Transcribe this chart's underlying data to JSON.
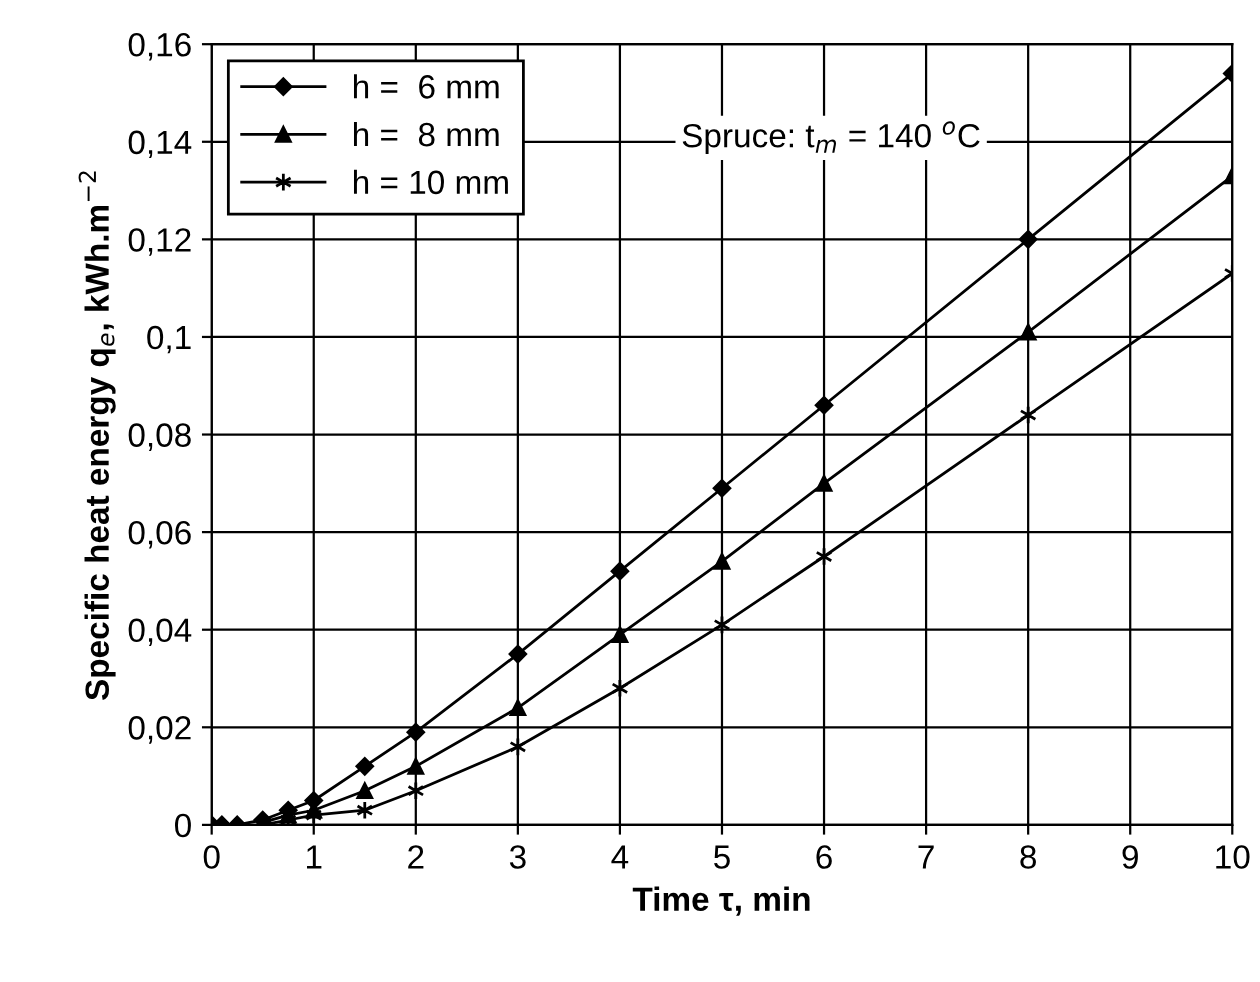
{
  "chart_data": {
    "type": "line",
    "xlabel": "Time τ, min",
    "ylabel": "Specific heat energy q$_{e}$, kWh.m$^{−2}$",
    "annotations": [
      "Spruce: t$_{m}$ = 140 $^{o}$C"
    ],
    "x": [
      0,
      0.1,
      0.25,
      0.5,
      0.75,
      1,
      1.5,
      2,
      3,
      4,
      5,
      6,
      8,
      10
    ],
    "series": [
      {
        "name": "h =  6 mm",
        "color": "#000000",
        "marker": "diamond",
        "values": [
          0,
          0,
          0,
          0.001,
          0.003,
          0.005,
          0.012,
          0.019,
          0.035,
          0.052,
          0.069,
          0.086,
          0.12,
          0.154
        ]
      },
      {
        "name": "h =  8 mm",
        "color": "#000000",
        "marker": "triangle",
        "values": [
          null,
          null,
          null,
          0.0005,
          0.002,
          0.003,
          0.007,
          0.012,
          0.024,
          0.039,
          0.054,
          0.07,
          0.101,
          0.133
        ]
      },
      {
        "name": "h = 10 mm",
        "color": "#000000",
        "marker": "cross",
        "values": [
          null,
          null,
          null,
          0,
          0.001,
          0.002,
          0.003,
          0.007,
          0.016,
          0.028,
          0.041,
          0.055,
          0.084,
          0.113
        ]
      }
    ],
    "xlim": [
      0,
      10
    ],
    "xticks": [
      0,
      1,
      2,
      3,
      4,
      5,
      6,
      7,
      8,
      9,
      10
    ],
    "ylim": [
      0,
      0.16
    ],
    "yticks": [
      0,
      {
        "value": 0.02,
        "label": "0,02"
      },
      {
        "value": 0.04,
        "label": "0,04"
      },
      {
        "value": 0.06,
        "label": "0,06"
      },
      {
        "value": 0.08,
        "label": "0,08"
      },
      {
        "value": 0.1,
        "label": "0,1"
      },
      {
        "value": 0.12,
        "label": "0,12"
      },
      {
        "value": 0.14,
        "label": "0,14"
      },
      {
        "value": 0.16,
        "label": "0,16"
      }
    ],
    "grid": true,
    "legend": "top left",
    "line_style": "solid"
  }
}
